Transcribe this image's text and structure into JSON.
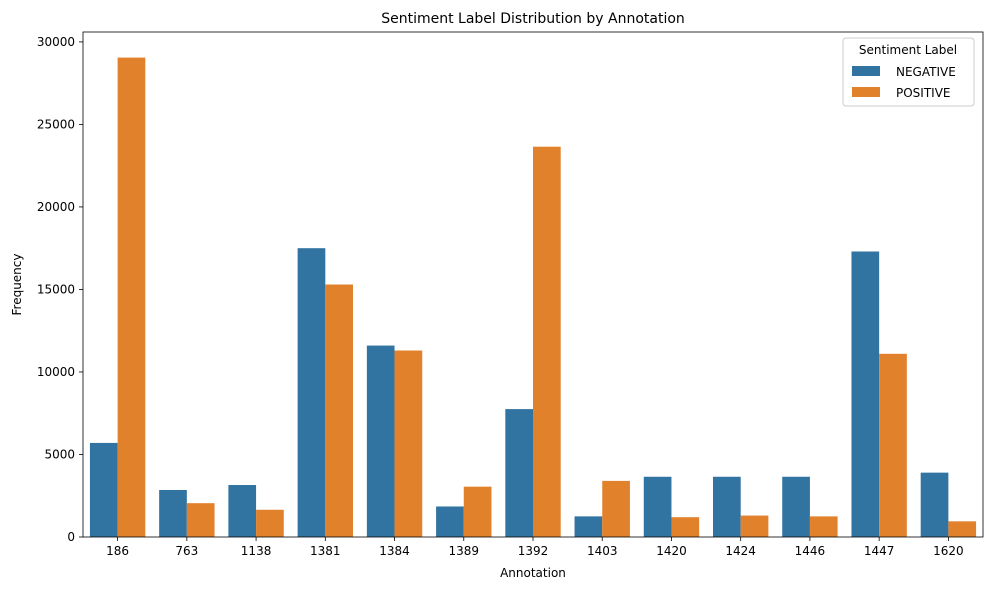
{
  "chart_data": {
    "type": "bar",
    "title": "Sentiment Label Distribution by Annotation",
    "xlabel": "Annotation",
    "ylabel": "Frequency",
    "categories": [
      "186",
      "763",
      "1138",
      "1381",
      "1384",
      "1389",
      "1392",
      "1403",
      "1420",
      "1424",
      "1446",
      "1447",
      "1620"
    ],
    "series": [
      {
        "name": "NEGATIVE",
        "color": "#3274a1",
        "values": [
          5700,
          2850,
          3150,
          17500,
          11600,
          1850,
          7750,
          1250,
          3650,
          3650,
          3650,
          17300,
          3900
        ]
      },
      {
        "name": "POSITIVE",
        "color": "#e1812c",
        "values": [
          29050,
          2050,
          1650,
          15300,
          11300,
          3050,
          23650,
          3400,
          1200,
          1300,
          1250,
          11100,
          950
        ]
      }
    ],
    "ylim": [
      0,
      30600
    ],
    "yticks": [
      0,
      5000,
      10000,
      15000,
      20000,
      25000,
      30000
    ],
    "legend": {
      "title": "Sentiment Label",
      "position": "top-right"
    },
    "grid": false
  }
}
